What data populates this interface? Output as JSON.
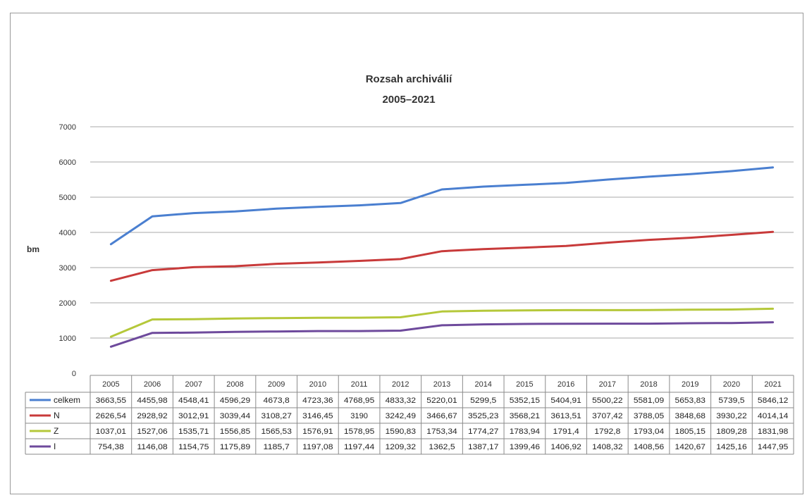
{
  "chart_data": {
    "type": "line",
    "title": "Rozsah archiválií",
    "subtitle": "2005–2021",
    "ylabel": "bm",
    "ylim": [
      0,
      7000
    ],
    "yticks": [
      0,
      1000,
      2000,
      3000,
      4000,
      5000,
      6000,
      7000
    ],
    "grid": true,
    "legend_placement": "data table below chart",
    "categories": [
      "2005",
      "2006",
      "2007",
      "2008",
      "2009",
      "2010",
      "2011",
      "2012",
      "2013",
      "2014",
      "2015",
      "2016",
      "2017",
      "2018",
      "2019",
      "2020",
      "2021"
    ],
    "series": [
      {
        "name": "celkem",
        "color": "#4a7fd0",
        "values": [
          3663.55,
          4455.98,
          4548.41,
          4596.29,
          4673.8,
          4723.36,
          4768.95,
          4833.32,
          5220.01,
          5299.5,
          5352.15,
          5404.91,
          5500.22,
          5581.09,
          5653.83,
          5739.5,
          5846.12
        ],
        "labels": [
          "3663,55",
          "4455,98",
          "4548,41",
          "4596,29",
          "4673,8",
          "4723,36",
          "4768,95",
          "4833,32",
          "5220,01",
          "5299,5",
          "5352,15",
          "5404,91",
          "5500,22",
          "5581,09",
          "5653,83",
          "5739,5",
          "5846,12"
        ]
      },
      {
        "name": "N",
        "color": "#c83a3a",
        "values": [
          2626.54,
          2928.92,
          3012.91,
          3039.44,
          3108.27,
          3146.45,
          3190,
          3242.49,
          3466.67,
          3525.23,
          3568.21,
          3613.51,
          3707.42,
          3788.05,
          3848.68,
          3930.22,
          4014.14
        ],
        "labels": [
          "2626,54",
          "2928,92",
          "3012,91",
          "3039,44",
          "3108,27",
          "3146,45",
          "3190",
          "3242,49",
          "3466,67",
          "3525,23",
          "3568,21",
          "3613,51",
          "3707,42",
          "3788,05",
          "3848,68",
          "3930,22",
          "4014,14"
        ]
      },
      {
        "name": "Z",
        "color": "#b5c83a",
        "values": [
          1037.01,
          1527.06,
          1535.71,
          1556.85,
          1565.53,
          1576.91,
          1578.95,
          1590.83,
          1753.34,
          1774.27,
          1783.94,
          1791.4,
          1792.8,
          1793.04,
          1805.15,
          1809.28,
          1831.98
        ],
        "labels": [
          "1037,01",
          "1527,06",
          "1535,71",
          "1556,85",
          "1565,53",
          "1576,91",
          "1578,95",
          "1590,83",
          "1753,34",
          "1774,27",
          "1783,94",
          "1791,4",
          "1792,8",
          "1793,04",
          "1805,15",
          "1809,28",
          "1831,98"
        ]
      },
      {
        "name": "I",
        "color": "#6e4a9c",
        "values": [
          754.38,
          1146.08,
          1154.75,
          1175.89,
          1185.7,
          1197.08,
          1197.44,
          1209.32,
          1362.5,
          1387.17,
          1399.46,
          1406.92,
          1408.32,
          1408.56,
          1420.67,
          1425.16,
          1447.95
        ],
        "labels": [
          "754,38",
          "1146,08",
          "1154,75",
          "1175,89",
          "1185,7",
          "1197,08",
          "1197,44",
          "1209,32",
          "1362,5",
          "1387,17",
          "1399,46",
          "1406,92",
          "1408,32",
          "1408,56",
          "1420,67",
          "1425,16",
          "1447,95"
        ]
      }
    ]
  }
}
